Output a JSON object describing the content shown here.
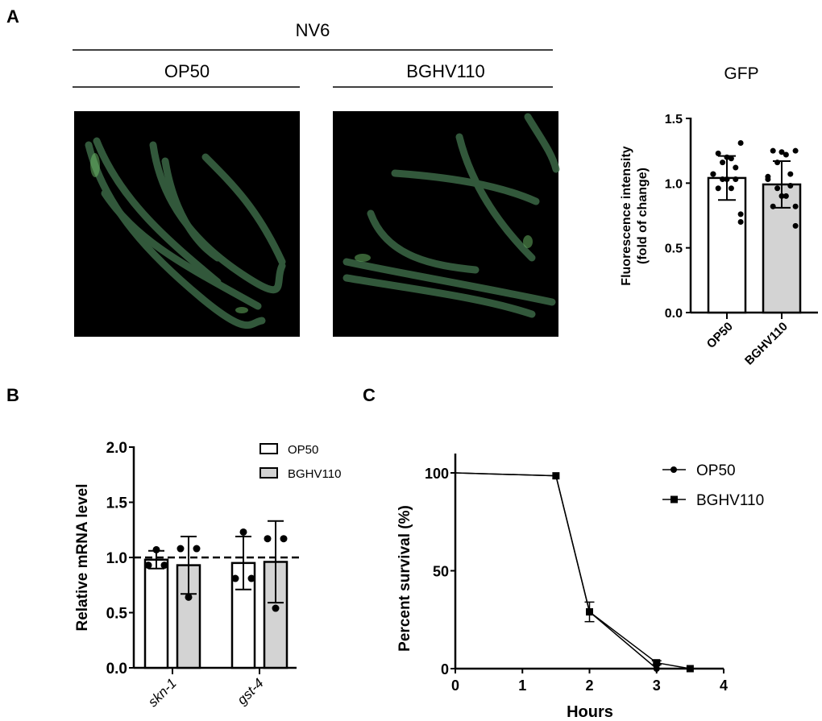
{
  "panels": {
    "a_label": "A",
    "b_label": "B",
    "c_label": "C",
    "strain": "NV6",
    "group_left": "OP50",
    "group_right": "BGHV110"
  },
  "colors": {
    "bar_op50": "#ffffff",
    "bar_bghv110": "#d3d3d3",
    "worm_green": "#6fbf6a",
    "micrograph_bg": "#000000"
  },
  "chart_data": [
    {
      "id": "gfp",
      "type": "bar",
      "title": "GFP",
      "ylabel": [
        "Fluorescence intensity",
        "(fold of change)"
      ],
      "xlabel": "",
      "ylim": [
        0,
        1.5
      ],
      "yticks": [
        "0.0",
        "0.5",
        "1.0",
        "1.5"
      ],
      "categories": [
        "OP50",
        "BGHV110"
      ],
      "values": [
        1.04,
        0.99
      ],
      "sd": [
        0.17,
        0.18
      ],
      "points": [
        [
          1.31,
          1.23,
          1.19,
          1.2,
          1.16,
          1.12,
          1.07,
          1.07,
          1.03,
          1.03,
          1.03,
          0.96,
          0.96,
          0.76,
          0.7
        ],
        [
          1.25,
          1.25,
          1.22,
          1.24,
          1.16,
          1.07,
          1.05,
          1.03,
          0.98,
          0.96,
          0.9,
          0.9,
          0.82,
          0.82,
          0.67
        ]
      ]
    },
    {
      "id": "mrna",
      "type": "bar",
      "title": "",
      "ylabel": "Relative mRNA level",
      "xlabel": "",
      "ylim": [
        0,
        2.0
      ],
      "yticks": [
        "0.0",
        "0.5",
        "1.0",
        "1.5",
        "2.0"
      ],
      "categories": [
        "skn-1",
        "gst-4"
      ],
      "reference_line": 1.0,
      "legend": "top-right",
      "series": [
        {
          "name": "OP50",
          "values": [
            0.98,
            0.95
          ],
          "sd": [
            0.08,
            0.24
          ],
          "points": [
            [
              1.07,
              0.93,
              0.93
            ],
            [
              1.23,
              0.81,
              0.81
            ]
          ]
        },
        {
          "name": "BGHV110",
          "values": [
            0.93,
            0.96
          ],
          "sd": [
            0.26,
            0.37
          ],
          "points": [
            [
              1.08,
              1.08,
              0.64
            ],
            [
              1.17,
              1.17,
              0.54
            ]
          ]
        }
      ]
    },
    {
      "id": "survival",
      "type": "line",
      "title": "",
      "xlabel": "Hours",
      "ylabel": "Percent survival (%)",
      "xlim": [
        0,
        4
      ],
      "ylim": [
        0,
        100
      ],
      "xticks": [
        "0",
        "1",
        "2",
        "3",
        "4"
      ],
      "yticks": [
        "0",
        "50",
        "100"
      ],
      "legend": "top-right",
      "series": [
        {
          "name": "OP50",
          "marker": "circle",
          "x": [
            0,
            1.5,
            2,
            3,
            3.5
          ],
          "y": [
            100,
            98.5,
            29,
            0,
            0
          ]
        },
        {
          "name": "BGHV110",
          "marker": "square",
          "x": [
            0,
            1.5,
            2,
            3,
            3.5
          ],
          "y": [
            100,
            98.5,
            29,
            3,
            0
          ],
          "err": [
            0,
            0,
            5,
            1,
            0
          ]
        }
      ]
    }
  ]
}
